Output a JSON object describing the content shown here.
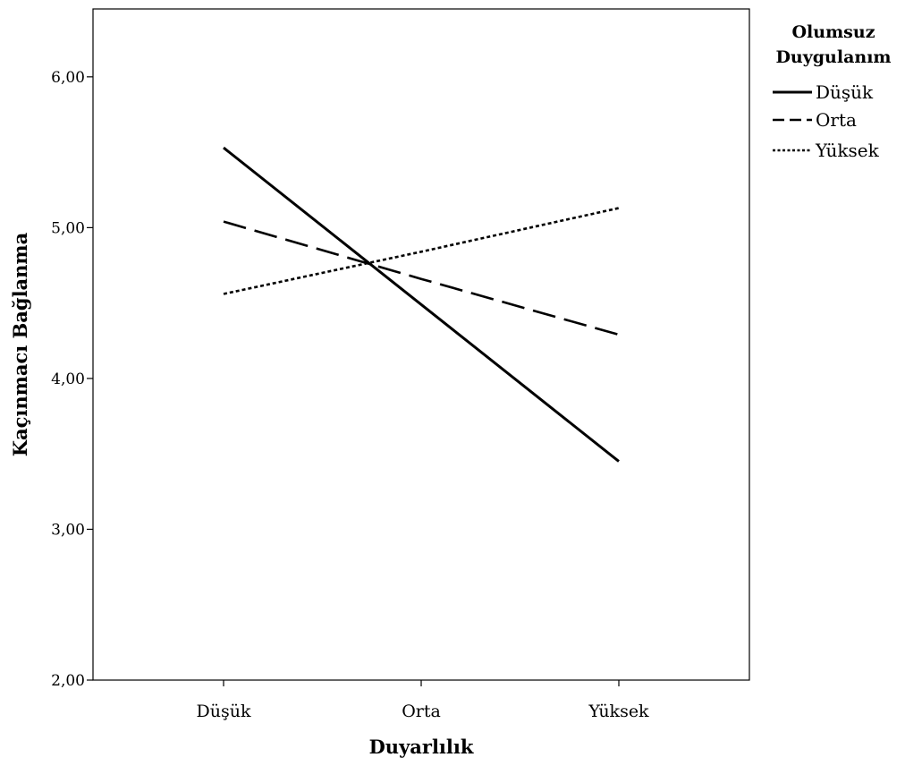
{
  "chart_data": {
    "type": "line",
    "categories": [
      "Düşük",
      "Orta",
      "Yüksek"
    ],
    "xlabel": "Duyarlılık",
    "ylabel": "Kaçınmacı Bağlanma",
    "ylim": [
      2.0,
      6.45
    ],
    "yticks": [
      "2,00",
      "3,00",
      "4,00",
      "5,00",
      "6,00"
    ],
    "ytick_values": [
      2,
      3,
      4,
      5,
      6
    ],
    "legend": {
      "title_line1": "Olumsuz",
      "title_line2": "Duygulanım",
      "placement": "right"
    },
    "series": [
      {
        "name": "Düşük",
        "values": [
          5.53,
          4.49,
          3.45
        ],
        "style": "solid"
      },
      {
        "name": "Orta",
        "values": [
          5.04,
          4.66,
          4.29
        ],
        "style": "dashed"
      },
      {
        "name": "Yüksek",
        "values": [
          4.56,
          4.84,
          5.13
        ],
        "style": "dotted"
      }
    ],
    "grid": false,
    "line_color": "#000000"
  }
}
